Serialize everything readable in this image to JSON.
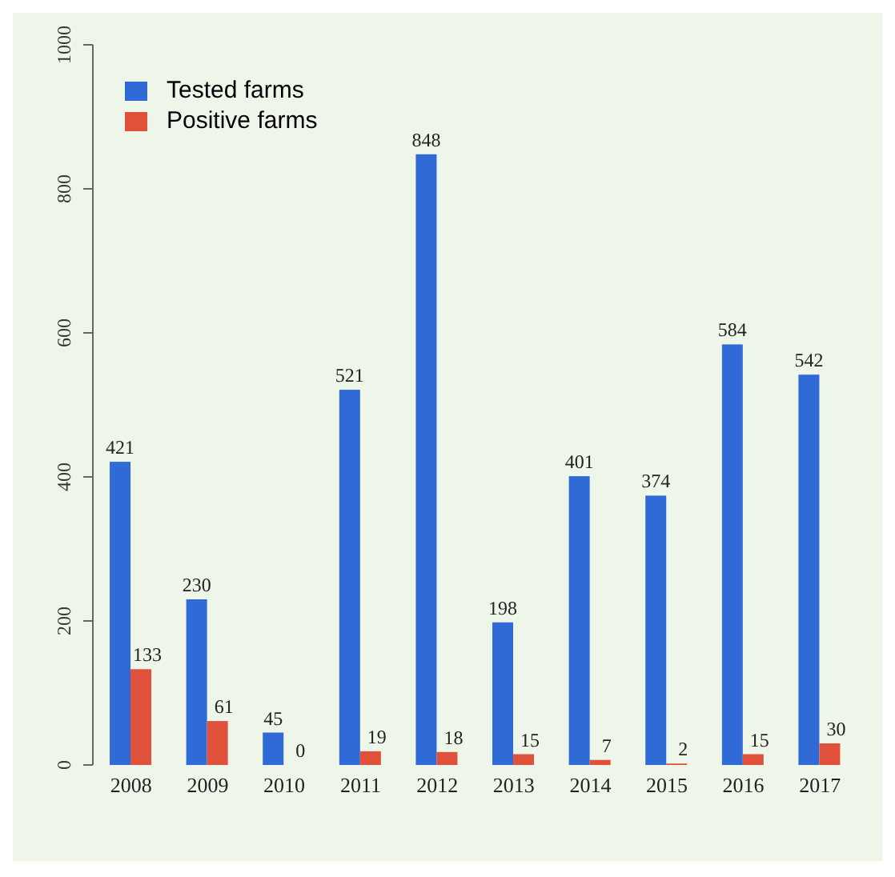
{
  "chart_data": {
    "type": "bar",
    "categories": [
      "2008",
      "2009",
      "2010",
      "2011",
      "2012",
      "2013",
      "2014",
      "2015",
      "2016",
      "2017"
    ],
    "series": [
      {
        "name": "Tested farms",
        "color": "#2f6ad6",
        "values": [
          421,
          230,
          45,
          521,
          848,
          198,
          401,
          374,
          584,
          542
        ]
      },
      {
        "name": "Positive farms",
        "color": "#e0513b",
        "values": [
          133,
          61,
          0,
          19,
          18,
          15,
          7,
          2,
          15,
          30
        ]
      }
    ],
    "ylim": [
      0,
      1000
    ],
    "yticks": [
      0,
      200,
      400,
      600,
      800,
      1000
    ],
    "data_labels": true,
    "legend": "top left",
    "grid": false
  }
}
